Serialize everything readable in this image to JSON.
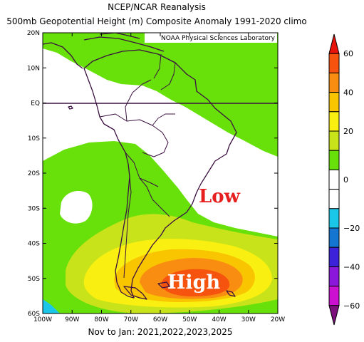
{
  "title": {
    "line1": "NCEP/NCAR Reanalysis",
    "line2": "500mb Geopotential Height (m) Composite Anomaly 1991-2020 climo"
  },
  "credit": "NOAA Physical Sciences Laboratory",
  "footer": "Nov to Jan: 2021,2022,2023,2025",
  "annotations": {
    "low": "Low",
    "high": "High"
  },
  "map": {
    "lon_range": [
      -100,
      -20
    ],
    "lat_range": [
      -60,
      20
    ],
    "lat_ticks": [
      "20N",
      "10N",
      "EQ",
      "10S",
      "20S",
      "30S",
      "40S",
      "50S",
      "60S"
    ],
    "lon_ticks": [
      "100W",
      "90W",
      "80W",
      "70W",
      "60W",
      "50W",
      "40W",
      "30W",
      "20W"
    ],
    "equator_line": "EQ"
  },
  "colorbar": {
    "labels": [
      "60",
      "40",
      "20",
      "0",
      "−20",
      "−40",
      "−60"
    ],
    "segments": [
      {
        "range": "60+",
        "color": "#e8130a"
      },
      {
        "range": "50-60",
        "color": "#f5530e"
      },
      {
        "range": "40-50",
        "color": "#f98d12"
      },
      {
        "range": "30-40",
        "color": "#f9c400"
      },
      {
        "range": "20-30",
        "color": "#f9ef10"
      },
      {
        "range": "10-20",
        "color": "#c9e31a"
      },
      {
        "range": "0-10",
        "color": "#68e10a"
      },
      {
        "range": "neutral-upper",
        "color": "#ffffff"
      },
      {
        "range": "neutral-lower",
        "color": "#ffffff"
      },
      {
        "range": "-10 to -20",
        "color": "#1ac7e8"
      },
      {
        "range": "-20 to -30",
        "color": "#1576d1"
      },
      {
        "range": "-30 to -40",
        "color": "#3c22d8"
      },
      {
        "range": "-40 to -50",
        "color": "#8a17d9"
      },
      {
        "range": "-50 to -60",
        "color": "#cc10d2"
      },
      {
        "range": "-60-",
        "color": "#7b0f7e"
      }
    ]
  }
}
